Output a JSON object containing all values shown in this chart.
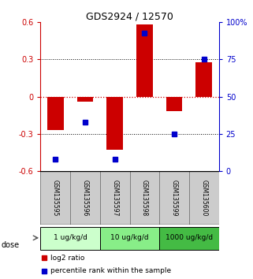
{
  "title": "GDS2924 / 12570",
  "samples": [
    "GSM135595",
    "GSM135596",
    "GSM135597",
    "GSM135598",
    "GSM135599",
    "GSM135600"
  ],
  "log2_ratio": [
    -0.27,
    -0.04,
    -0.43,
    0.58,
    -0.12,
    0.28
  ],
  "percentile_rank": [
    8,
    33,
    8,
    93,
    25,
    75
  ],
  "ylim_left": [
    -0.6,
    0.6
  ],
  "ylim_right": [
    0,
    100
  ],
  "yticks_left": [
    -0.6,
    -0.3,
    0,
    0.3,
    0.6
  ],
  "yticks_right": [
    0,
    25,
    50,
    75,
    100
  ],
  "ytick_labels_right": [
    "0",
    "25",
    "50",
    "75",
    "100%"
  ],
  "bar_color": "#cc0000",
  "dot_color": "#0000cc",
  "doses": [
    {
      "label": "1 ug/kg/d",
      "indices": [
        0,
        1
      ],
      "color": "#ccffcc"
    },
    {
      "label": "10 ug/kg/d",
      "indices": [
        2,
        3
      ],
      "color": "#88ee88"
    },
    {
      "label": "1000 ug/kg/d",
      "indices": [
        4,
        5
      ],
      "color": "#44bb44"
    }
  ],
  "legend_bar_label": "log2 ratio",
  "legend_dot_label": "percentile rank within the sample",
  "dose_label": "dose",
  "background_color": "#ffffff",
  "tick_label_color_left": "#cc0000",
  "tick_label_color_right": "#0000cc",
  "sample_bg": "#cccccc"
}
